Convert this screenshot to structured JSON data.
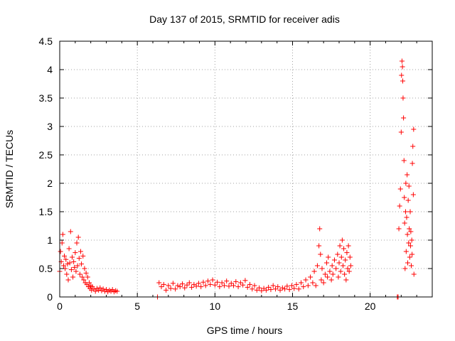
{
  "chart_data": {
    "type": "scatter",
    "title": "Day 137 of 2015, SRMTID for receiver adis",
    "xlabel": "GPS time / hours",
    "ylabel": "SRMTID / TECUs",
    "xlim": [
      0,
      24
    ],
    "ylim": [
      0,
      4.5
    ],
    "xticks": [
      "0",
      "5",
      "10",
      "15",
      "20"
    ],
    "yticks": [
      "0",
      "0.5",
      "1",
      "1.5",
      "2",
      "2.5",
      "3",
      "3.5",
      "4",
      "4.5"
    ],
    "grid": true,
    "marker": "+",
    "series": [
      {
        "name": "SRMTID",
        "color": "#ff0000",
        "points": [
          [
            0.0,
            0.45
          ],
          [
            0.05,
            0.8
          ],
          [
            0.1,
            0.62
          ],
          [
            0.15,
            0.95
          ],
          [
            0.2,
            1.1
          ],
          [
            0.25,
            0.55
          ],
          [
            0.3,
            0.72
          ],
          [
            0.35,
            0.5
          ],
          [
            0.4,
            0.66
          ],
          [
            0.45,
            0.4
          ],
          [
            0.5,
            0.58
          ],
          [
            0.55,
            0.3
          ],
          [
            0.6,
            0.85
          ],
          [
            0.65,
            0.6
          ],
          [
            0.7,
            1.15
          ],
          [
            0.75,
            0.48
          ],
          [
            0.8,
            0.7
          ],
          [
            0.85,
            0.35
          ],
          [
            0.9,
            0.62
          ],
          [
            0.95,
            0.52
          ],
          [
            1.0,
            0.78
          ],
          [
            1.05,
            0.45
          ],
          [
            1.1,
            0.95
          ],
          [
            1.15,
            0.55
          ],
          [
            1.2,
            1.05
          ],
          [
            1.25,
            0.68
          ],
          [
            1.3,
            0.4
          ],
          [
            1.35,
            0.8
          ],
          [
            1.4,
            0.58
          ],
          [
            1.45,
            0.35
          ],
          [
            1.5,
            0.72
          ],
          [
            1.55,
            0.3
          ],
          [
            1.6,
            0.5
          ],
          [
            1.65,
            0.25
          ],
          [
            1.7,
            0.42
          ],
          [
            1.75,
            0.22
          ],
          [
            1.8,
            0.35
          ],
          [
            1.85,
            0.18
          ],
          [
            1.9,
            0.25
          ],
          [
            1.95,
            0.15
          ],
          [
            2.0,
            0.2
          ],
          [
            2.05,
            0.12
          ],
          [
            2.1,
            0.18
          ],
          [
            2.2,
            0.14
          ],
          [
            2.3,
            0.1
          ],
          [
            2.4,
            0.15
          ],
          [
            2.5,
            0.12
          ],
          [
            2.6,
            0.16
          ],
          [
            2.7,
            0.11
          ],
          [
            2.8,
            0.14
          ],
          [
            2.9,
            0.1
          ],
          [
            3.0,
            0.13
          ],
          [
            3.1,
            0.09
          ],
          [
            3.2,
            0.12
          ],
          [
            3.3,
            0.1
          ],
          [
            3.4,
            0.13
          ],
          [
            3.5,
            0.09
          ],
          [
            3.6,
            0.11
          ],
          [
            3.7,
            0.1
          ],
          [
            6.3,
            0.0
          ],
          [
            6.4,
            0.25
          ],
          [
            6.55,
            0.18
          ],
          [
            6.7,
            0.22
          ],
          [
            6.85,
            0.12
          ],
          [
            7.0,
            0.2
          ],
          [
            7.15,
            0.15
          ],
          [
            7.3,
            0.24
          ],
          [
            7.45,
            0.14
          ],
          [
            7.6,
            0.2
          ],
          [
            7.75,
            0.18
          ],
          [
            7.9,
            0.23
          ],
          [
            8.05,
            0.16
          ],
          [
            8.2,
            0.21
          ],
          [
            8.35,
            0.25
          ],
          [
            8.5,
            0.17
          ],
          [
            8.65,
            0.22
          ],
          [
            8.8,
            0.19
          ],
          [
            8.95,
            0.24
          ],
          [
            9.1,
            0.18
          ],
          [
            9.25,
            0.26
          ],
          [
            9.4,
            0.2
          ],
          [
            9.55,
            0.28
          ],
          [
            9.7,
            0.22
          ],
          [
            9.85,
            0.3
          ],
          [
            10.0,
            0.21
          ],
          [
            10.15,
            0.26
          ],
          [
            10.3,
            0.18
          ],
          [
            10.45,
            0.25
          ],
          [
            10.6,
            0.2
          ],
          [
            10.75,
            0.28
          ],
          [
            10.9,
            0.19
          ],
          [
            11.05,
            0.24
          ],
          [
            11.2,
            0.2
          ],
          [
            11.35,
            0.27
          ],
          [
            11.5,
            0.18
          ],
          [
            11.65,
            0.25
          ],
          [
            11.8,
            0.21
          ],
          [
            11.95,
            0.29
          ],
          [
            12.1,
            0.17
          ],
          [
            12.25,
            0.22
          ],
          [
            12.4,
            0.14
          ],
          [
            12.55,
            0.2
          ],
          [
            12.7,
            0.12
          ],
          [
            12.85,
            0.16
          ],
          [
            13.0,
            0.11
          ],
          [
            13.15,
            0.15
          ],
          [
            13.3,
            0.12
          ],
          [
            13.45,
            0.17
          ],
          [
            13.6,
            0.13
          ],
          [
            13.75,
            0.2
          ],
          [
            13.9,
            0.14
          ],
          [
            14.05,
            0.18
          ],
          [
            14.2,
            0.12
          ],
          [
            14.35,
            0.16
          ],
          [
            14.5,
            0.14
          ],
          [
            14.65,
            0.19
          ],
          [
            14.8,
            0.13
          ],
          [
            14.95,
            0.2
          ],
          [
            15.1,
            0.15
          ],
          [
            15.25,
            0.22
          ],
          [
            15.4,
            0.14
          ],
          [
            15.55,
            0.25
          ],
          [
            15.7,
            0.18
          ],
          [
            15.85,
            0.3
          ],
          [
            16.0,
            0.2
          ],
          [
            16.15,
            0.35
          ],
          [
            16.3,
            0.25
          ],
          [
            16.4,
            0.45
          ],
          [
            16.5,
            0.2
          ],
          [
            16.6,
            0.55
          ],
          [
            16.7,
            0.9
          ],
          [
            16.75,
            1.2
          ],
          [
            16.8,
            0.75
          ],
          [
            16.85,
            0.3
          ],
          [
            16.9,
            0.5
          ],
          [
            17.0,
            0.25
          ],
          [
            17.1,
            0.4
          ],
          [
            17.2,
            0.6
          ],
          [
            17.25,
            0.35
          ],
          [
            17.3,
            0.7
          ],
          [
            17.4,
            0.45
          ],
          [
            17.5,
            0.3
          ],
          [
            17.55,
            0.55
          ],
          [
            17.6,
            0.4
          ],
          [
            17.7,
            0.65
          ],
          [
            17.8,
            0.5
          ],
          [
            17.9,
            0.75
          ],
          [
            17.95,
            0.35
          ],
          [
            18.0,
            0.6
          ],
          [
            18.05,
            0.9
          ],
          [
            18.1,
            0.45
          ],
          [
            18.15,
            0.7
          ],
          [
            18.2,
            1.0
          ],
          [
            18.25,
            0.55
          ],
          [
            18.3,
            0.85
          ],
          [
            18.35,
            0.4
          ],
          [
            18.4,
            0.65
          ],
          [
            18.45,
            0.3
          ],
          [
            18.5,
            0.78
          ],
          [
            18.55,
            0.5
          ],
          [
            18.6,
            0.9
          ],
          [
            18.65,
            0.45
          ],
          [
            18.7,
            0.7
          ],
          [
            18.75,
            0.55
          ],
          [
            21.75,
            0.0
          ],
          [
            21.8,
            0.0
          ],
          [
            21.85,
            1.2
          ],
          [
            21.9,
            1.6
          ],
          [
            21.95,
            1.9
          ],
          [
            22.0,
            2.9
          ],
          [
            22.02,
            3.9
          ],
          [
            22.05,
            4.15
          ],
          [
            22.08,
            4.05
          ],
          [
            22.1,
            3.8
          ],
          [
            22.12,
            3.5
          ],
          [
            22.15,
            3.15
          ],
          [
            22.18,
            2.4
          ],
          [
            22.2,
            1.75
          ],
          [
            22.22,
            1.3
          ],
          [
            22.25,
            0.5
          ],
          [
            22.28,
            1.5
          ],
          [
            22.3,
            2.0
          ],
          [
            22.32,
            0.8
          ],
          [
            22.35,
            1.4
          ],
          [
            22.38,
            2.15
          ],
          [
            22.4,
            1.1
          ],
          [
            22.42,
            0.6
          ],
          [
            22.45,
            1.7
          ],
          [
            22.48,
            0.95
          ],
          [
            22.5,
            1.95
          ],
          [
            22.52,
            1.2
          ],
          [
            22.55,
            0.7
          ],
          [
            22.58,
            1.5
          ],
          [
            22.6,
            0.9
          ],
          [
            22.62,
            1.15
          ],
          [
            22.65,
            0.55
          ],
          [
            22.68,
            1.0
          ],
          [
            22.7,
            0.75
          ],
          [
            22.72,
            2.35
          ],
          [
            22.75,
            2.65
          ],
          [
            22.78,
            1.8
          ],
          [
            22.8,
            2.95
          ],
          [
            22.82,
            0.4
          ]
        ]
      }
    ]
  }
}
